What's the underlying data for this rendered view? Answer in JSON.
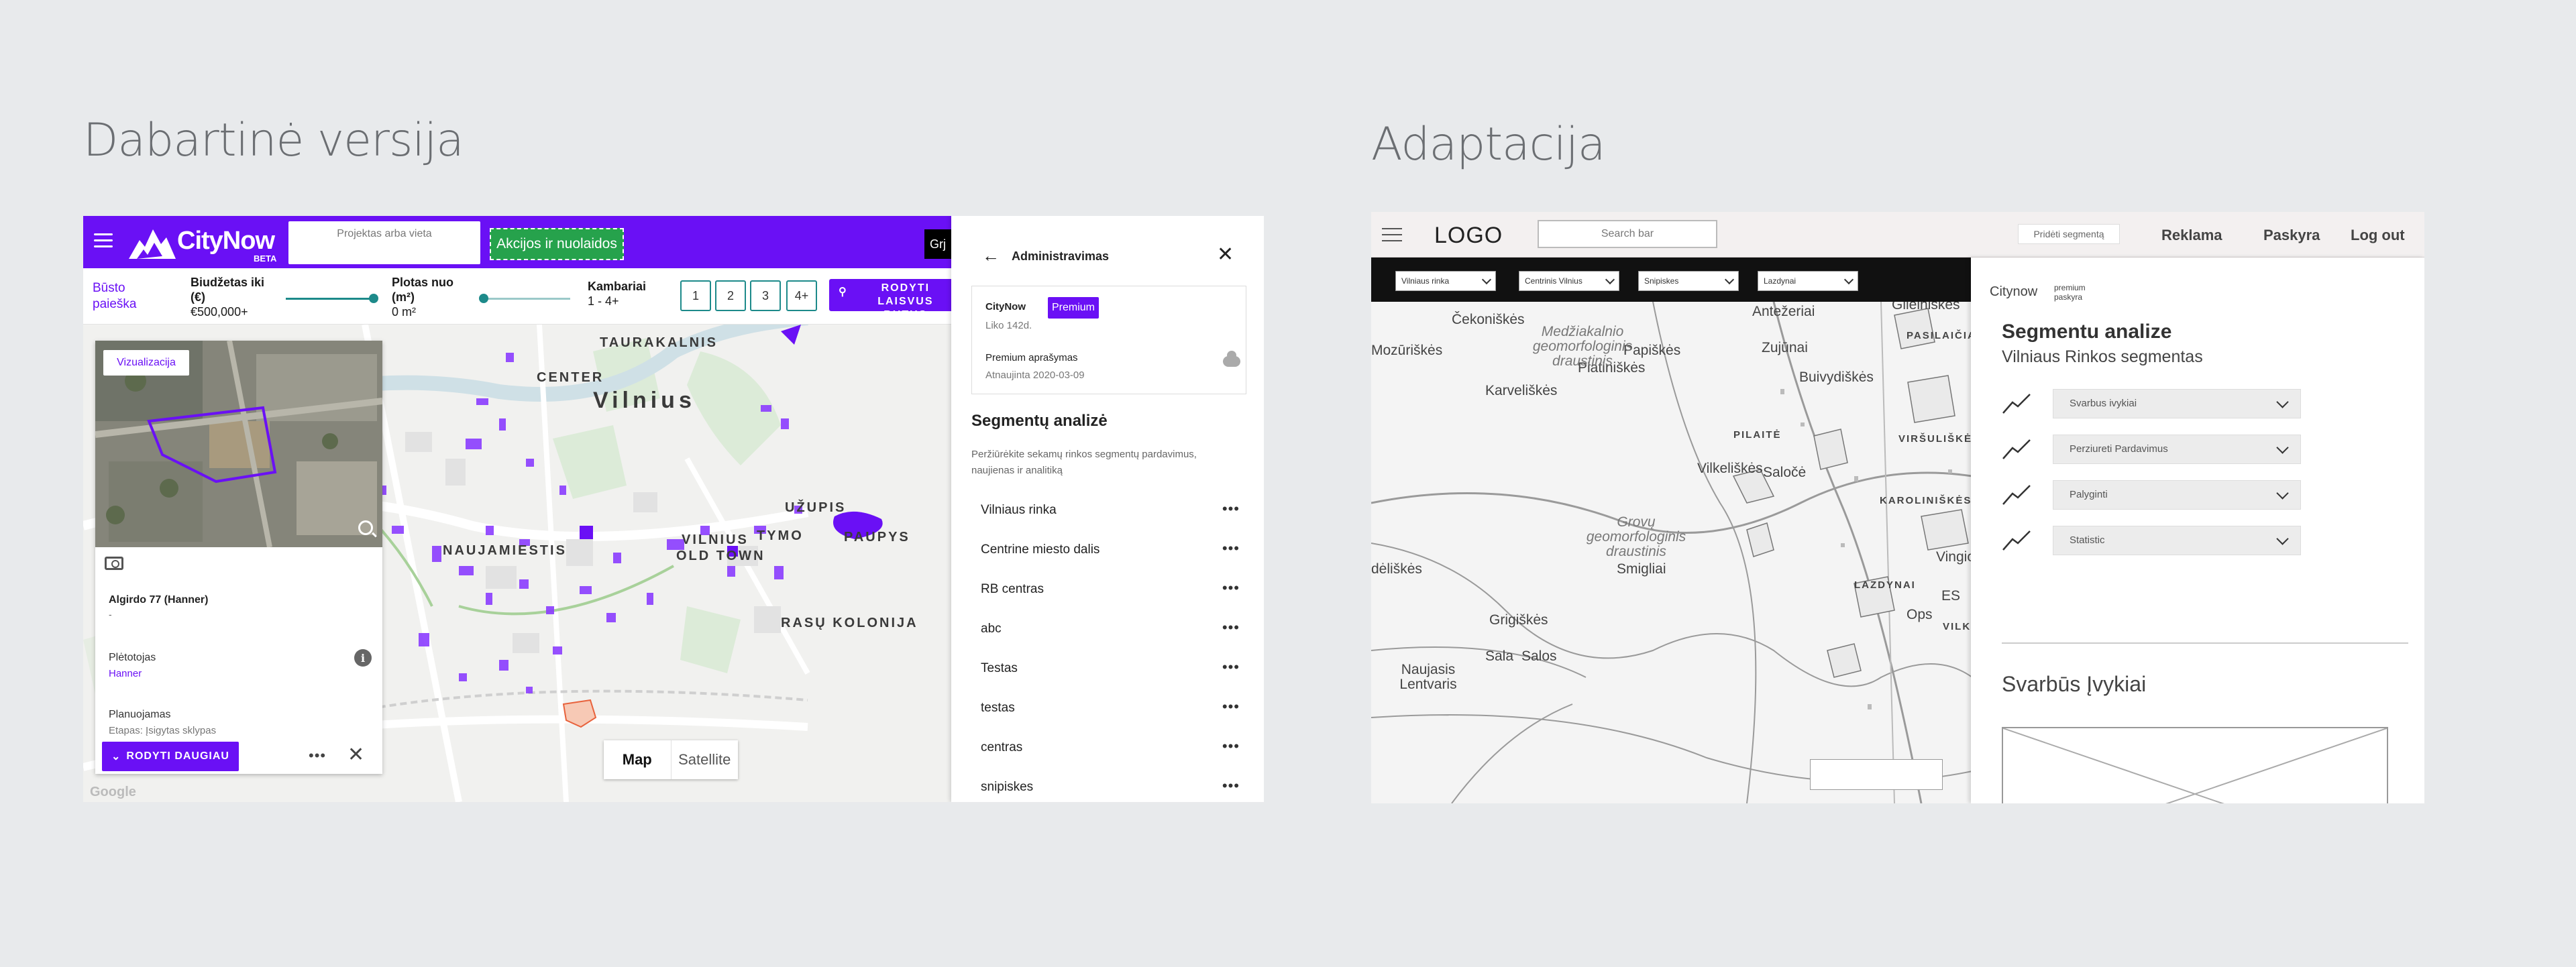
{
  "headings": {
    "left": "Dabartinė versija",
    "right": "Adaptacija"
  },
  "current": {
    "brand": "CityNow",
    "beta": "BETA",
    "search_placeholder": "Projektas arba vieta",
    "promo_label": "Akcijos ir nuolaidos",
    "grj": "Grj",
    "filters": {
      "link": "Būsto paieška",
      "budget_label": "Biudžetas iki (€)",
      "budget_value": "€500,000+",
      "area_label": "Plotas nuo (m²)",
      "area_value": "0 m²",
      "rooms_label": "Kambariai",
      "rooms_value": "1 - 4+",
      "room_options": [
        "1",
        "2",
        "3",
        "4+"
      ],
      "search_button": "RODYTI LAISVUS BUTUS"
    },
    "map": {
      "labels": {
        "city": "Vilnius",
        "center": "CENTER",
        "naujamiestis": "NAUJAMIESTIS",
        "old_town_1": "VILNIUS",
        "old_town_2": "OLD TOWN",
        "uzupis": "UŽUPIS",
        "paupys": "PAUPYS",
        "rasu": "RASŲ KOLONIJA",
        "taurakalnis": "TAURAKALNIS",
        "tymo": "TYMO"
      },
      "toggle_map": "Map",
      "toggle_satellite": "Satellite",
      "google": "Google"
    },
    "detail": {
      "viz_button": "Vizualizacija",
      "title": "Algirdo 77 (Hanner)",
      "dash": "-",
      "developer_label": "Plėtotojas",
      "developer_value": "Hanner",
      "stage_label": "Planuojamas",
      "stage_value": "Etapas: Įsigytas sklypas",
      "more_button": "RODYTI DAUGIAU",
      "dots": "•••",
      "close": "✕"
    },
    "admin": {
      "back": "←",
      "title": "Administravimas",
      "close": "✕",
      "cn_label": "CityNow",
      "badge": "Premium",
      "days_left": "Liko 142d.",
      "premium_desc": "Premium aprašymas",
      "renewed": "Atnaujinta 2020-03-09",
      "seg_title": "Segmentų analizė",
      "seg_desc": "Peržiūrėkite sekamų rinkos segmentų pardavimus, naujienas ir analitiką",
      "segments": [
        "Vilniaus rinka",
        "Centrine miesto dalis",
        "RB centras",
        "abc",
        "Testas",
        "testas",
        "centras",
        "snipiskes"
      ],
      "row_dots": "•••"
    }
  },
  "adaptation": {
    "logo": "LOGO",
    "search": "Search bar",
    "add_segment": "Pridėti segmentą",
    "nav": [
      "Reklama",
      "Paskyra",
      "Log out"
    ],
    "selects": [
      "Vilniaus rinka",
      "Centrinis Vilnius",
      "Snipiskes",
      "Lazdynai"
    ],
    "map_labels": [
      "Čekoniškės",
      "Mozūriškės",
      "Karveliškės",
      "Platiniškės",
      "Papiškės",
      "Antežeriai",
      "Zujūnai",
      "Buivydiškės",
      "Gilelniškės",
      "PASILAIČIAI",
      "PILAITĖ",
      "Vilkeliškės",
      "Saločė",
      "KAROLINIŠKĖS",
      "VIRŠULIŠKĖS",
      "LAZDYNAI",
      "Smigliai",
      "Grigiškės",
      "Sala",
      "Naujasis Lentvaris",
      "Salos",
      "Vingio",
      "VILK",
      "ES",
      "Ops",
      "dėliškės"
    ],
    "reserve_labels": [
      "Medžiakalnio geomorfologinis draustinis",
      "Grovų geomorfologinis draustinis"
    ],
    "panel": {
      "brand": "Citynow",
      "premium": "premium",
      "account": "paskyra",
      "title": "Segmentu analize",
      "subtitle": "Vilniaus Rinkos segmentas",
      "dropdowns": [
        "Svarbus ivykiai",
        "Perziureti Pardavimus",
        "Palyginti",
        "Statistic"
      ],
      "section2": "Svarbūs Įvykiai"
    }
  }
}
